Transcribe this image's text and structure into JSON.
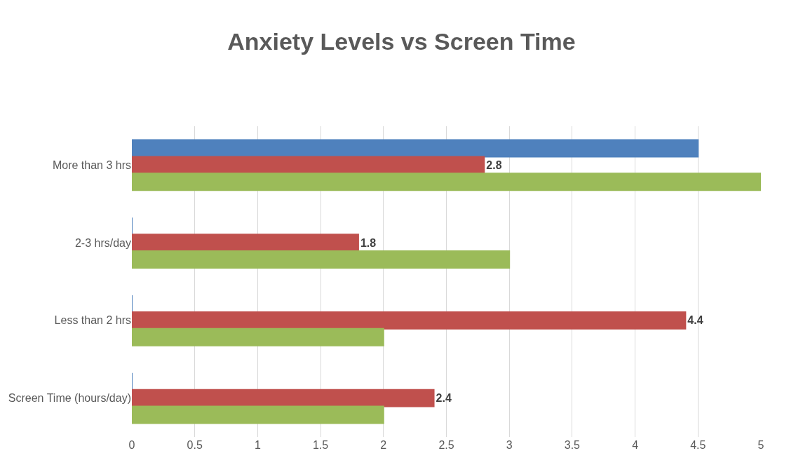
{
  "chart_data": {
    "type": "bar",
    "orientation": "horizontal",
    "title": "Anxiety Levels vs Screen Time",
    "categories": [
      "More than 3 hrs",
      "2-3 hrs/day",
      "Less than 2 hrs",
      "Screen Time (hours/day)"
    ],
    "series": [
      {
        "color": "#4f81bd",
        "values": [
          4.5,
          0,
          0,
          0
        ]
      },
      {
        "color": "#c0504d",
        "values": [
          2.8,
          1.8,
          4.4,
          2.4
        ],
        "value_labels": [
          "2.8",
          "1.8",
          "4.4",
          "2.4"
        ]
      },
      {
        "color": "#9bbb59",
        "values": [
          5,
          3,
          2,
          2
        ]
      }
    ],
    "xlim": [
      0,
      5
    ],
    "xticks": [
      0,
      0.5,
      1,
      1.5,
      2,
      2.5,
      3,
      3.5,
      4,
      4.5,
      5
    ],
    "grid": "x"
  }
}
